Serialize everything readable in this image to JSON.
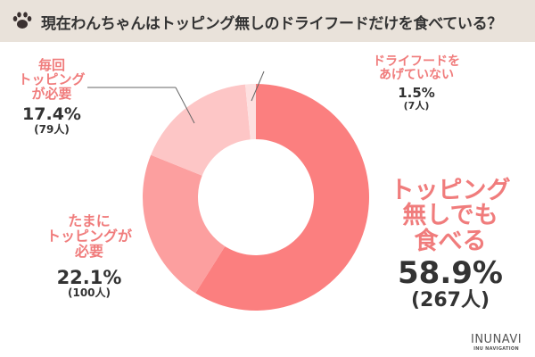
{
  "header": {
    "title": "現在わんちゃんはトッピング無しのドライフードだけを食べている？",
    "icon": "paw-icon"
  },
  "chart_data": {
    "type": "pie",
    "donut": true,
    "title": "現在わんちゃんはトッピング無しのドライフードだけを食べている？",
    "slices": [
      {
        "label_lines": [
          "トッピング",
          "無しでも",
          "食べる"
        ],
        "percent": "58.9%",
        "count": "(267人)",
        "value": 58.9,
        "color": "#fb7f7f"
      },
      {
        "label_lines": [
          "たまに",
          "トッピングが",
          "必要"
        ],
        "percent": "22.1%",
        "count": "(100人)",
        "value": 22.1,
        "color": "#fc9f9f"
      },
      {
        "label_lines": [
          "毎回",
          "トッピング",
          "が必要"
        ],
        "percent": "17.4%",
        "count": "(79人)",
        "value": 17.4,
        "color": "#fdc6c6"
      },
      {
        "label_lines": [
          "ドライフードを",
          "あげていない"
        ],
        "percent": "1.5%",
        "count": "(7人)",
        "value": 1.5,
        "color": "#fde0e0"
      }
    ]
  },
  "logo": {
    "name": "INUNAVI",
    "sub": "INU NAVIGATION"
  }
}
